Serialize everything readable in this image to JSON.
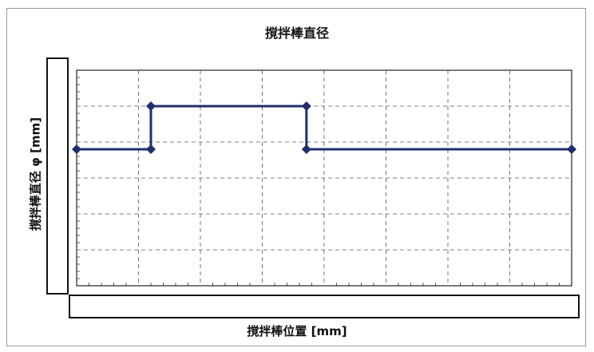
{
  "chart_data": {
    "type": "line",
    "title": "撹拌棒直径",
    "xlabel": "撹拌棒位置 [mm]",
    "ylabel": "撹拌棒直径 φ [mm]",
    "xlim": [
      0,
      70
    ],
    "ylim": [
      0,
      6
    ],
    "grid": true,
    "series": [
      {
        "color": "#1f2f6e",
        "x": [
          0,
          10.5,
          10.5,
          32.5,
          32.5,
          70
        ],
        "y": [
          3.8,
          3.8,
          5.0,
          5.0,
          3.8,
          3.8
        ],
        "marker": "diamond"
      }
    ]
  }
}
